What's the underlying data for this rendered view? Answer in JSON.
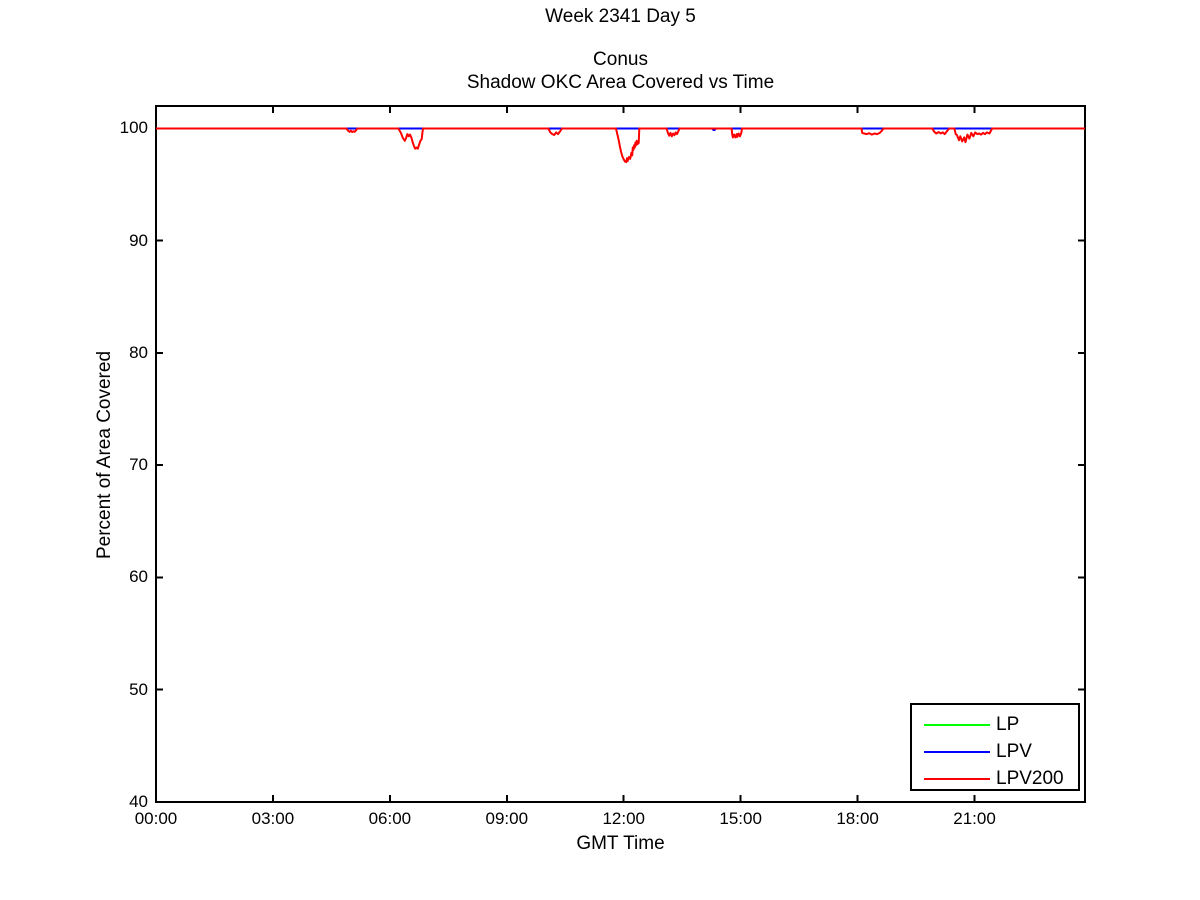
{
  "figure": {
    "suptitle": "Week 2341 Day 5",
    "title_line1": "Conus",
    "title_line2": "Shadow OKC Area Covered vs Time"
  },
  "chart_data": {
    "type": "line",
    "suptitle": "Week 2341 Day 5",
    "title": [
      "Conus",
      "Shadow OKC Area Covered vs Time"
    ],
    "xlabel": "GMT Time",
    "ylabel": "Percent of Area Covered",
    "x_unit": "minutes_from_midnight_GMT",
    "xlim_minutes": [
      0,
      1430
    ],
    "ylim": [
      40,
      102
    ],
    "grid": false,
    "background": "#ffffff",
    "axis_color": "#000000",
    "x_ticks": [
      {
        "minute": 0,
        "label": "00:00"
      },
      {
        "minute": 180,
        "label": "03:00"
      },
      {
        "minute": 360,
        "label": "06:00"
      },
      {
        "minute": 540,
        "label": "09:00"
      },
      {
        "minute": 720,
        "label": "12:00"
      },
      {
        "minute": 900,
        "label": "15:00"
      },
      {
        "minute": 1080,
        "label": "18:00"
      },
      {
        "minute": 1260,
        "label": "21:00"
      }
    ],
    "y_ticks": [
      {
        "value": 100,
        "label": "100"
      },
      {
        "value": 90,
        "label": "90"
      },
      {
        "value": 80,
        "label": "80"
      },
      {
        "value": 70,
        "label": "70"
      },
      {
        "value": 60,
        "label": "60"
      },
      {
        "value": 50,
        "label": "50"
      },
      {
        "value": 40,
        "label": "40"
      }
    ],
    "legend": {
      "position": "bottom-right",
      "entries": [
        {
          "label": "LP",
          "color": "#00ff00"
        },
        {
          "label": "LPV",
          "color": "#0000ff"
        },
        {
          "label": "LPV200",
          "color": "#ff0000"
        }
      ]
    },
    "series": [
      {
        "name": "LP",
        "color": "#00ff00",
        "points": [
          [
            0,
            100
          ],
          [
            1430,
            100
          ]
        ]
      },
      {
        "name": "LPV",
        "color": "#0000ff",
        "points": [
          [
            0,
            100
          ],
          [
            856,
            100
          ],
          [
            858,
            99.86
          ],
          [
            860,
            99.86
          ],
          [
            862,
            100
          ],
          [
            1430,
            100
          ]
        ]
      },
      {
        "name": "LPV200",
        "color": "#ff0000",
        "points": [
          [
            0,
            100
          ],
          [
            293,
            100
          ],
          [
            296,
            99.78
          ],
          [
            298,
            99.7
          ],
          [
            300,
            99.8
          ],
          [
            302,
            99.68
          ],
          [
            304,
            99.75
          ],
          [
            306,
            99.7
          ],
          [
            308,
            99.85
          ],
          [
            310,
            100
          ],
          [
            373,
            100
          ],
          [
            377,
            99.6
          ],
          [
            380,
            99.15
          ],
          [
            383,
            98.9
          ],
          [
            385,
            99.15
          ],
          [
            387,
            99.5
          ],
          [
            389,
            99.3
          ],
          [
            391,
            99.45
          ],
          [
            393,
            99.2
          ],
          [
            395,
            98.8
          ],
          [
            397,
            98.45
          ],
          [
            399,
            98.2
          ],
          [
            401,
            98.3
          ],
          [
            403,
            98.2
          ],
          [
            405,
            98.55
          ],
          [
            407,
            98.9
          ],
          [
            409,
            99.05
          ],
          [
            410,
            99.6
          ],
          [
            411,
            100
          ],
          [
            604,
            100
          ],
          [
            607,
            99.65
          ],
          [
            610,
            99.5
          ],
          [
            613,
            99.42
          ],
          [
            616,
            99.65
          ],
          [
            619,
            99.5
          ],
          [
            622,
            99.75
          ],
          [
            625,
            100
          ],
          [
            708,
            100
          ],
          [
            710,
            99.5
          ],
          [
            712,
            99.0
          ],
          [
            714,
            98.4
          ],
          [
            716,
            97.9
          ],
          [
            718,
            97.5
          ],
          [
            720,
            97.25
          ],
          [
            722,
            97.05
          ],
          [
            724,
            97.0
          ],
          [
            725,
            97.35
          ],
          [
            726,
            97.1
          ],
          [
            728,
            97.45
          ],
          [
            730,
            97.3
          ],
          [
            732,
            97.85
          ],
          [
            733,
            97.6
          ],
          [
            734,
            98.3
          ],
          [
            735,
            98.1
          ],
          [
            736,
            98.5
          ],
          [
            737,
            98.3
          ],
          [
            738,
            98.75
          ],
          [
            739,
            98.5
          ],
          [
            740,
            98.9
          ],
          [
            741,
            98.6
          ],
          [
            743,
            98.7
          ],
          [
            744,
            100
          ],
          [
            786,
            100
          ],
          [
            788,
            99.6
          ],
          [
            790,
            99.35
          ],
          [
            792,
            99.6
          ],
          [
            794,
            99.3
          ],
          [
            796,
            99.55
          ],
          [
            798,
            99.4
          ],
          [
            800,
            99.65
          ],
          [
            802,
            99.5
          ],
          [
            804,
            99.75
          ],
          [
            806,
            100
          ],
          [
            886,
            100
          ],
          [
            887,
            99.5
          ],
          [
            888,
            99.2
          ],
          [
            890,
            99.45
          ],
          [
            892,
            99.2
          ],
          [
            894,
            99.5
          ],
          [
            895,
            99.25
          ],
          [
            897,
            99.55
          ],
          [
            899,
            99.3
          ],
          [
            901,
            99.6
          ],
          [
            902,
            100
          ],
          [
            1086,
            100
          ],
          [
            1087,
            99.6
          ],
          [
            1090,
            99.55
          ],
          [
            1094,
            99.5
          ],
          [
            1098,
            99.58
          ],
          [
            1102,
            99.45
          ],
          [
            1106,
            99.55
          ],
          [
            1110,
            99.5
          ],
          [
            1114,
            99.6
          ],
          [
            1117,
            99.78
          ],
          [
            1120,
            100
          ],
          [
            1195,
            100
          ],
          [
            1198,
            99.7
          ],
          [
            1201,
            99.55
          ],
          [
            1205,
            99.68
          ],
          [
            1208,
            99.55
          ],
          [
            1211,
            99.65
          ],
          [
            1214,
            99.5
          ],
          [
            1217,
            99.72
          ],
          [
            1221,
            100
          ],
          [
            1229,
            100
          ],
          [
            1231,
            99.5
          ],
          [
            1233,
            99.4
          ],
          [
            1236,
            98.95
          ],
          [
            1238,
            99.3
          ],
          [
            1241,
            98.85
          ],
          [
            1244,
            99.2
          ],
          [
            1246,
            98.78
          ],
          [
            1249,
            99.45
          ],
          [
            1252,
            99.1
          ],
          [
            1255,
            99.6
          ],
          [
            1258,
            99.3
          ],
          [
            1261,
            99.65
          ],
          [
            1264,
            99.5
          ],
          [
            1267,
            99.55
          ],
          [
            1270,
            99.45
          ],
          [
            1273,
            99.6
          ],
          [
            1276,
            99.5
          ],
          [
            1279,
            99.65
          ],
          [
            1283,
            99.55
          ],
          [
            1287,
            100
          ],
          [
            1430,
            100
          ]
        ]
      }
    ]
  }
}
